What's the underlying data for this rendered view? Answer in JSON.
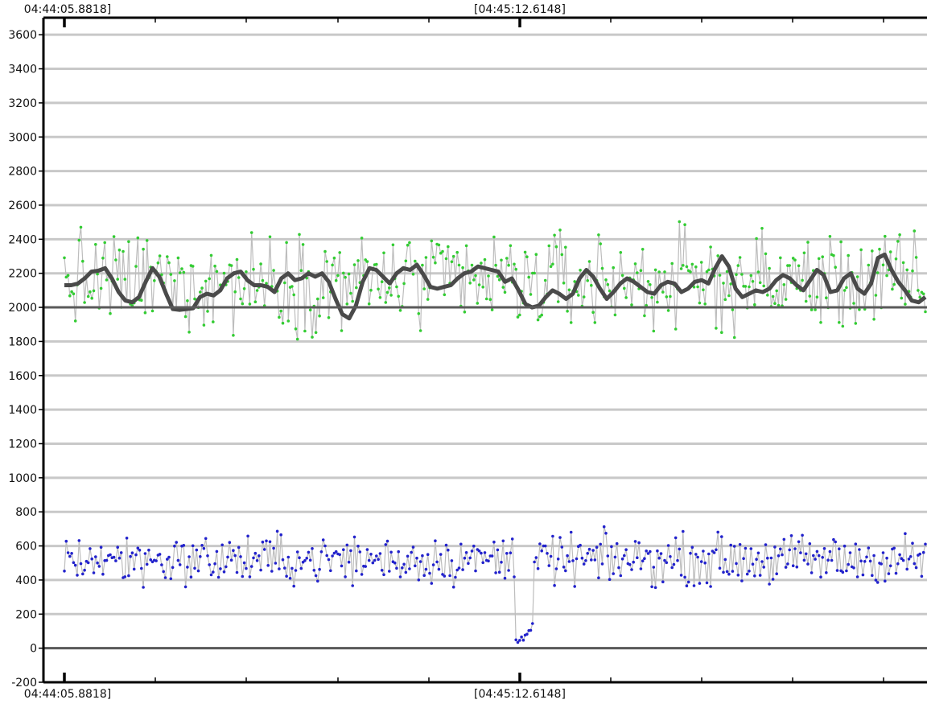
{
  "chart_data": {
    "type": "line",
    "title": "",
    "xlabel": "",
    "ylabel": "",
    "ylim": [
      -200,
      3700
    ],
    "yticks": [
      3600,
      3400,
      3200,
      3000,
      2800,
      2600,
      2400,
      2200,
      2000,
      1800,
      1600,
      1400,
      1200,
      1000,
      800,
      600,
      400,
      200,
      0,
      -200
    ],
    "ytick_labels": [
      "3600",
      "3400",
      "3200",
      "3000",
      "2800",
      "2600",
      "2400",
      "2200",
      "2000",
      "1800",
      "1600",
      "1400",
      "1200",
      "1000",
      "800",
      "600",
      "400",
      "200",
      "0",
      "-200"
    ],
    "reference_lines": [
      2000,
      0
    ],
    "grid": true,
    "x_top_labels": [
      "04:44:05.8818]",
      "[04:45:12.6148]"
    ],
    "x_bottom_labels": [
      "04:44:05.8818]",
      "[04:45:12.6148]"
    ],
    "series": [
      {
        "kind": "raw-scatter-upper",
        "color": "#33cc33",
        "base": 2150,
        "spread": 380,
        "points": 470
      },
      {
        "kind": "smoothed-upper",
        "color": "#4a4a4a",
        "values": [
          2130,
          2130,
          2140,
          2170,
          2210,
          2215,
          2230,
          2170,
          2090,
          2040,
          2030,
          2060,
          2150,
          2230,
          2180,
          2080,
          1990,
          1985,
          1990,
          1995,
          2060,
          2080,
          2070,
          2100,
          2170,
          2200,
          2210,
          2160,
          2130,
          2130,
          2120,
          2090,
          2170,
          2200,
          2160,
          2170,
          2200,
          2180,
          2200,
          2150,
          2050,
          1960,
          1935,
          2010,
          2150,
          2230,
          2220,
          2180,
          2140,
          2200,
          2230,
          2220,
          2250,
          2190,
          2120,
          2110,
          2120,
          2130,
          2170,
          2200,
          2210,
          2240,
          2230,
          2220,
          2210,
          2150,
          2170,
          2100,
          2020,
          2000,
          2010,
          2060,
          2100,
          2080,
          2050,
          2080,
          2170,
          2220,
          2180,
          2110,
          2050,
          2090,
          2140,
          2170,
          2150,
          2120,
          2090,
          2080,
          2130,
          2150,
          2140,
          2090,
          2110,
          2150,
          2160,
          2140,
          2230,
          2300,
          2240,
          2110,
          2060,
          2080,
          2100,
          2090,
          2110,
          2160,
          2190,
          2170,
          2130,
          2100,
          2160,
          2220,
          2190,
          2090,
          2100,
          2170,
          2200,
          2110,
          2080,
          2140,
          2290,
          2310,
          2220,
          2150,
          2100,
          2040,
          2030,
          2060
        ]
      },
      {
        "kind": "raw-scatter-lower",
        "color": "#2222cc",
        "base": 520,
        "spread": 190,
        "points": 470,
        "dip": {
          "value": 80,
          "note": "brief drop near [04:45:12.6148]"
        }
      }
    ]
  }
}
